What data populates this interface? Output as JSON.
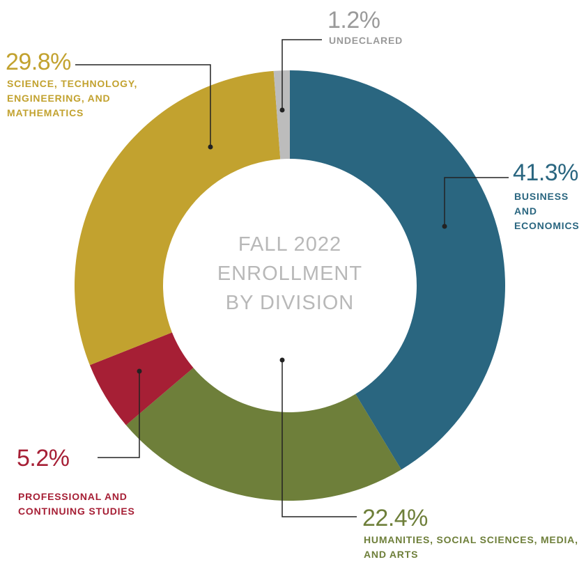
{
  "chart_data": {
    "type": "donut",
    "title": "FALL 2022 ENROLLMENT BY DIVISION",
    "categories": [
      "BUSINESS AND ECONOMICS",
      "HUMANITIES, SOCIAL SCIENCES, MEDIA, AND ARTS",
      "PROFESSIONAL AND CONTINUING STUDIES",
      "SCIENCE, TECHNOLOGY, ENGINEERING, AND MATHEMATICS",
      "UNDECLARED"
    ],
    "values": [
      41.3,
      22.4,
      5.2,
      29.8,
      1.2
    ],
    "value_labels": [
      "41.3%",
      "22.4%",
      "5.2%",
      "29.8%",
      "1.2%"
    ],
    "colors": [
      "#2a6680",
      "#6e7f3a",
      "#a61f35",
      "#c2a22f",
      "#bcbcbc"
    ]
  }
}
